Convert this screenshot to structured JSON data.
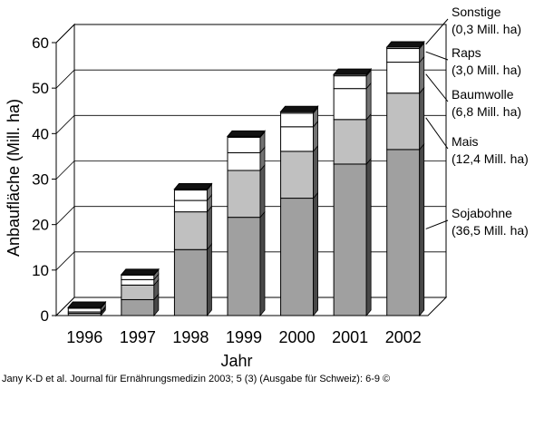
{
  "chart_data": {
    "type": "bar",
    "stacked": true,
    "three_d": true,
    "ylabel": "Anbaufläche (Mill. ha)",
    "xlabel": "Jahr",
    "ylim": [
      0,
      60
    ],
    "yticks": [
      0,
      10,
      20,
      30,
      40,
      50,
      60
    ],
    "grid": true,
    "legend_placement": "right",
    "categories": [
      "1996",
      "1997",
      "1998",
      "1999",
      "2000",
      "2001",
      "2002"
    ],
    "series": [
      {
        "name": "Sojabohne",
        "detail": "(36,5 Mill.  ha)",
        "color": "#a0a0a0",
        "values": [
          0.5,
          3.5,
          14.5,
          21.6,
          25.8,
          33.3,
          36.5
        ]
      },
      {
        "name": "Mais",
        "detail": "(12,4 Mill.  ha)",
        "color": "#c0c0c0",
        "values": [
          0.3,
          3.2,
          8.3,
          10.3,
          10.3,
          9.8,
          12.4
        ]
      },
      {
        "name": "Baumwolle",
        "detail": "(6,8 Mill.  ha)",
        "color": "#ffffff",
        "values": [
          0.8,
          1.2,
          2.5,
          3.9,
          5.4,
          6.8,
          6.8
        ]
      },
      {
        "name": "Raps",
        "detail": "(3,0 Mill.  ha)",
        "color": "#ffffff",
        "values": [
          0.1,
          1.0,
          2.3,
          3.4,
          3.0,
          2.8,
          3.0
        ]
      },
      {
        "name": "Sonstige",
        "detail": "(0,3 Mill.  ha)",
        "color": "#e8e8e8",
        "values": [
          0.1,
          0.1,
          0.2,
          0.2,
          0.3,
          0.3,
          0.3
        ]
      }
    ]
  },
  "source_text": "Jany K-D et al. Journal für Ernährungsmedizin 2003; 5 (3) (Ausgabe für Schweiz): 6-9 ©"
}
